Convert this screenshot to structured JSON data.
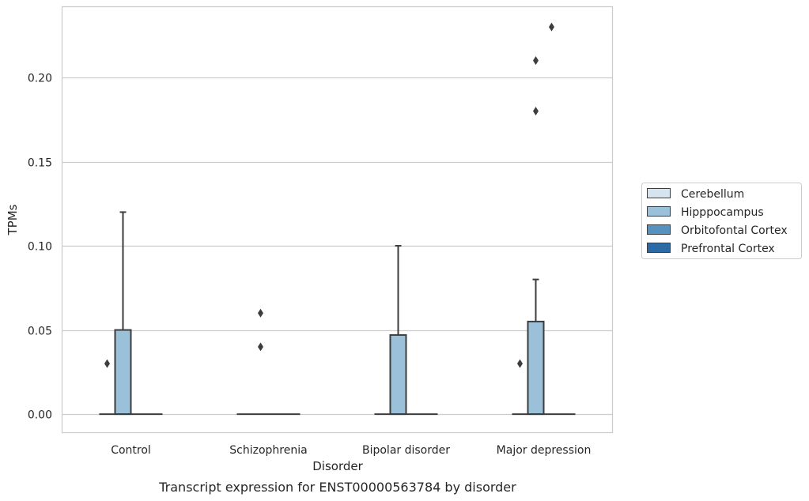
{
  "chart_data": {
    "type": "box",
    "xlabel": "Disorder",
    "ylabel": "TPMs",
    "caption": "Transcript expression for ENST00000563784 by disorder",
    "categories": [
      "Control",
      "Schizophrenia",
      "Bipolar disorder",
      "Major depression"
    ],
    "ylim": [
      -0.011,
      0.242
    ],
    "yticks": [
      {
        "value": 0.0,
        "label": "0.00"
      },
      {
        "value": 0.05,
        "label": "0.05"
      },
      {
        "value": 0.1,
        "label": "0.10"
      },
      {
        "value": 0.15,
        "label": "0.15"
      },
      {
        "value": 0.2,
        "label": "0.20"
      }
    ],
    "grid": "horizontal",
    "legend_placement": "right",
    "series": [
      {
        "name": "Cerebellum",
        "color": "#d6e4f0",
        "boxes": [
          {
            "q1": 0,
            "median": 0,
            "q3": 0,
            "whisker_low": 0,
            "whisker_high": 0,
            "outliers": [
              0.03
            ]
          },
          {
            "q1": 0,
            "median": 0,
            "q3": 0,
            "whisker_low": 0,
            "whisker_high": 0,
            "outliers": []
          },
          {
            "q1": 0,
            "median": 0,
            "q3": 0,
            "whisker_low": 0,
            "whisker_high": 0,
            "outliers": []
          },
          {
            "q1": 0,
            "median": 0,
            "q3": 0,
            "whisker_low": 0,
            "whisker_high": 0,
            "outliers": [
              0.03
            ]
          }
        ]
      },
      {
        "name": "Hipppocampus",
        "color": "#9ac1d9",
        "boxes": [
          {
            "q1": 0,
            "median": 0,
            "q3": 0.05,
            "whisker_low": 0,
            "whisker_high": 0.12,
            "outliers": []
          },
          {
            "q1": 0,
            "median": 0,
            "q3": 0,
            "whisker_low": 0,
            "whisker_high": 0,
            "outliers": [
              0.04,
              0.06
            ]
          },
          {
            "q1": 0,
            "median": 0,
            "q3": 0.047,
            "whisker_low": 0,
            "whisker_high": 0.1,
            "outliers": []
          },
          {
            "q1": 0,
            "median": 0,
            "q3": 0.055,
            "whisker_low": 0,
            "whisker_high": 0.08,
            "outliers": [
              0.18,
              0.21
            ]
          }
        ]
      },
      {
        "name": "Orbitofontal Cortex",
        "color": "#5592bf",
        "boxes": [
          {
            "q1": 0,
            "median": 0,
            "q3": 0,
            "whisker_low": 0,
            "whisker_high": 0,
            "outliers": []
          },
          {
            "q1": 0,
            "median": 0,
            "q3": 0,
            "whisker_low": 0,
            "whisker_high": 0,
            "outliers": []
          },
          {
            "q1": 0,
            "median": 0,
            "q3": 0,
            "whisker_low": 0,
            "whisker_high": 0,
            "outliers": []
          },
          {
            "q1": 0,
            "median": 0,
            "q3": 0,
            "whisker_low": 0,
            "whisker_high": 0,
            "outliers": [
              0.23
            ]
          }
        ]
      },
      {
        "name": "Prefrontal Cortex",
        "color": "#2b6aa5",
        "boxes": [
          {
            "q1": 0,
            "median": 0,
            "q3": 0,
            "whisker_low": 0,
            "whisker_high": 0,
            "outliers": []
          },
          {
            "q1": 0,
            "median": 0,
            "q3": 0,
            "whisker_low": 0,
            "whisker_high": 0,
            "outliers": []
          },
          {
            "q1": 0,
            "median": 0,
            "q3": 0,
            "whisker_low": 0,
            "whisker_high": 0,
            "outliers": []
          },
          {
            "q1": 0,
            "median": 0,
            "q3": 0,
            "whisker_low": 0,
            "whisker_high": 0,
            "outliers": []
          }
        ]
      }
    ]
  }
}
